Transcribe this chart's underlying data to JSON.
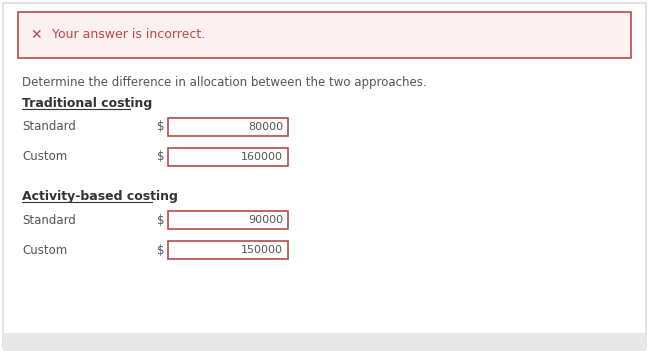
{
  "page_bg": "#ffffff",
  "outer_bg": "#ffffff",
  "error_bg": "#fdf0f0",
  "error_border": "#b94a48",
  "error_text": "Your answer is incorrect.",
  "error_icon": "✕",
  "instruction": "Determine the difference in allocation between the two approaches.",
  "section1_title": "Traditional costing",
  "section2_title": "Activity-based costing",
  "rows": [
    {
      "label": "Standard",
      "dollar": "$",
      "value": "80000",
      "section": 1
    },
    {
      "label": "Custom",
      "dollar": "$",
      "value": "160000",
      "section": 1
    },
    {
      "label": "Standard",
      "dollar": "$",
      "value": "90000",
      "section": 2
    },
    {
      "label": "Custom",
      "dollar": "$",
      "value": "150000",
      "section": 2
    }
  ],
  "input_border": "#b94a48",
  "input_bg": "#ffffff",
  "label_color": "#555555",
  "title_color": "#333333",
  "value_color": "#555555",
  "bottom_bar_color": "#e8e8e8",
  "figsize": [
    6.49,
    3.51
  ],
  "dpi": 100
}
